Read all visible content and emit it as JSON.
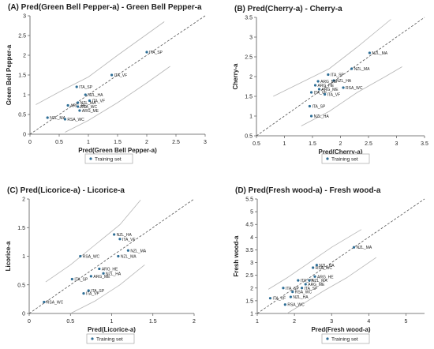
{
  "chart_data": [
    {
      "type": "scatter",
      "title": "(A)  Pred(Green Bell Pepper-a) - Green Bell Pepper-a",
      "xlabel": "Pred(Green Bell Pepper-a)",
      "ylabel": "Green Bell Pepper-a",
      "xlim": [
        0,
        3
      ],
      "ylim": [
        0,
        3
      ],
      "xticks": [
        "0",
        "0.5",
        "1",
        "1.5",
        "2",
        "2.5",
        "3"
      ],
      "yticks": [
        "0",
        "0.5",
        "1",
        "1.5",
        "2",
        "2.5",
        "3"
      ],
      "grid": false,
      "legend": [
        "Training set"
      ],
      "legend_position": "bottom-left",
      "series": [
        {
          "name": "Training set",
          "points": [
            {
              "label": "ITA_SP",
              "x": 2.0,
              "y": 2.08
            },
            {
              "label": "ITA_VF",
              "x": 1.4,
              "y": 1.5
            },
            {
              "label": "ITA_SP",
              "x": 0.8,
              "y": 1.2
            },
            {
              "label": "NZL_HA",
              "x": 0.95,
              "y": 1.0
            },
            {
              "label": "ITA_VF",
              "x": 1.02,
              "y": 0.85
            },
            {
              "label": "NZL_MA",
              "x": 0.82,
              "y": 0.8
            },
            {
              "label": "ARG_HE",
              "x": 0.65,
              "y": 0.73
            },
            {
              "label": "RSA_WC",
              "x": 0.82,
              "y": 0.7
            },
            {
              "label": "ARG_ME",
              "x": 0.85,
              "y": 0.6
            },
            {
              "label": "NZL_MA",
              "x": 0.3,
              "y": 0.42
            },
            {
              "label": "RSA_WC",
              "x": 0.6,
              "y": 0.38
            }
          ]
        }
      ],
      "fit_line": {
        "x": [
          0,
          3
        ],
        "y": [
          0,
          3
        ]
      },
      "confidence_lower": {
        "x": [
          0.6,
          1.0,
          1.5,
          2.0,
          2.4
        ],
        "y": [
          0.05,
          0.35,
          0.8,
          1.3,
          1.72
        ]
      },
      "confidence_upper": {
        "x": [
          0.1,
          0.6,
          1.0,
          1.5,
          2.3
        ],
        "y": [
          0.75,
          1.15,
          1.45,
          2.0,
          2.85
        ]
      }
    },
    {
      "type": "scatter",
      "title": "(B)  Pred(Cherry-a) - Cherry-a",
      "xlabel": "Pred(Cherry-a)",
      "ylabel": "Cherry-a",
      "xlim": [
        0.5,
        3.5
      ],
      "ylim": [
        0.5,
        3.5
      ],
      "xticks": [
        "0.5",
        "1",
        "1.5",
        "2",
        "2.5",
        "3",
        "3.5"
      ],
      "yticks": [
        "0.5",
        "1",
        "1.5",
        "2",
        "2.5",
        "3",
        "3.5"
      ],
      "grid": false,
      "legend": [
        "Training set"
      ],
      "legend_position": "bottom-left",
      "series": [
        {
          "name": "Training set",
          "points": [
            {
              "label": "NZL_MA",
              "x": 2.52,
              "y": 2.6
            },
            {
              "label": "NZL_MA",
              "x": 2.2,
              "y": 2.2
            },
            {
              "label": "ITA_SP",
              "x": 1.78,
              "y": 2.05
            },
            {
              "label": "NZL_HA",
              "x": 1.88,
              "y": 1.9
            },
            {
              "label": "ARG_ME",
              "x": 1.6,
              "y": 1.88
            },
            {
              "label": "ARG_HE",
              "x": 1.55,
              "y": 1.78
            },
            {
              "label": "ARG_ME",
              "x": 1.62,
              "y": 1.68
            },
            {
              "label": "RSA_WC",
              "x": 2.05,
              "y": 1.72
            },
            {
              "label": "ITA_VF",
              "x": 1.48,
              "y": 1.6
            },
            {
              "label": "ITA_VF",
              "x": 1.72,
              "y": 1.55
            },
            {
              "label": "ITA_SP",
              "x": 1.45,
              "y": 1.25
            },
            {
              "label": "NZL_HA",
              "x": 1.48,
              "y": 1.0
            }
          ]
        }
      ],
      "fit_line": {
        "x": [
          0.5,
          3.5
        ],
        "y": [
          0.5,
          3.5
        ]
      },
      "confidence_lower": {
        "x": [
          1.3,
          1.8,
          2.3,
          2.8,
          3.1
        ],
        "y": [
          0.75,
          1.12,
          1.6,
          2.0,
          2.25
        ]
      },
      "confidence_upper": {
        "x": [
          0.8,
          1.3,
          1.8,
          2.3,
          2.9
        ],
        "y": [
          1.5,
          1.85,
          2.2,
          2.75,
          3.45
        ]
      }
    },
    {
      "type": "scatter",
      "title": "(C)  Pred(Licorice-a) - Licorice-a",
      "xlabel": "Pred(Licorice-a)",
      "ylabel": "Licorice-a",
      "xlim": [
        0,
        2
      ],
      "ylim": [
        0,
        2
      ],
      "xticks": [
        "0",
        "0.5",
        "1",
        "1.5",
        "2"
      ],
      "yticks": [
        "0",
        "0.5",
        "1",
        "1.5",
        "2"
      ],
      "grid": false,
      "legend": [
        "Training set"
      ],
      "legend_position": "bottom-left",
      "series": [
        {
          "name": "Training set",
          "points": [
            {
              "label": "NZL_HA",
              "x": 1.03,
              "y": 1.38
            },
            {
              "label": "ITA_VF",
              "x": 1.1,
              "y": 1.3
            },
            {
              "label": "NZL_MA",
              "x": 1.2,
              "y": 1.1
            },
            {
              "label": "RSA_WC",
              "x": 0.62,
              "y": 1.0
            },
            {
              "label": "NZL_MA",
              "x": 1.08,
              "y": 1.0
            },
            {
              "label": "ARG_HE",
              "x": 0.85,
              "y": 0.78
            },
            {
              "label": "NZL_HA",
              "x": 0.9,
              "y": 0.7
            },
            {
              "label": "ARG_ME",
              "x": 0.75,
              "y": 0.65
            },
            {
              "label": "ITA_SP",
              "x": 0.52,
              "y": 0.6
            },
            {
              "label": "ITA_SP",
              "x": 0.72,
              "y": 0.4
            },
            {
              "label": "ITA_VF",
              "x": 0.66,
              "y": 0.35
            },
            {
              "label": "RSA_WC",
              "x": 0.18,
              "y": 0.2
            }
          ]
        }
      ],
      "fit_line": {
        "x": [
          0,
          2
        ],
        "y": [
          0,
          2
        ]
      },
      "confidence_lower": {
        "x": [
          0.5,
          0.8,
          1.1,
          1.4
        ],
        "y": [
          0.0,
          0.22,
          0.5,
          0.85
        ]
      },
      "confidence_upper": {
        "x": [
          0.2,
          0.5,
          0.8,
          1.1,
          1.35
        ],
        "y": [
          0.55,
          0.85,
          1.2,
          1.55,
          1.98
        ]
      }
    },
    {
      "type": "scatter",
      "title": "(D)  Pred(Fresh wood-a) - Fresh wood-a",
      "xlabel": "Pred(Fresh wood-a)",
      "ylabel": "Fresh wood-a",
      "xlim": [
        1,
        5.5
      ],
      "ylim": [
        1,
        5.5
      ],
      "xticks": [
        "1",
        "2",
        "3",
        "4",
        "5"
      ],
      "yticks": [
        "1",
        "1.5",
        "2",
        "2.5",
        "3",
        "3.5",
        "4",
        "4.5",
        "5",
        "5.5"
      ],
      "grid": false,
      "legend": [
        "Training set"
      ],
      "legend_position": "bottom-left",
      "series": [
        {
          "name": "Training set",
          "points": [
            {
              "label": "NZL_MA",
              "x": 3.6,
              "y": 3.6
            },
            {
              "label": "RSA_WC",
              "x": 2.5,
              "y": 2.8
            },
            {
              "label": "NZL_HA",
              "x": 2.6,
              "y": 2.9
            },
            {
              "label": "ARG_HE",
              "x": 2.55,
              "y": 2.45
            },
            {
              "label": "ITA_VF",
              "x": 2.1,
              "y": 2.3
            },
            {
              "label": "NZL_MA",
              "x": 2.4,
              "y": 2.3
            },
            {
              "label": "ARG_ME",
              "x": 2.3,
              "y": 2.15
            },
            {
              "label": "ITA_SP",
              "x": 1.7,
              "y": 2.0
            },
            {
              "label": "ITA_SP",
              "x": 2.2,
              "y": 2.0
            },
            {
              "label": "RSA_WC",
              "x": 1.95,
              "y": 1.85
            },
            {
              "label": "NZL_HA",
              "x": 1.9,
              "y": 1.65
            },
            {
              "label": "ITA_VF",
              "x": 1.35,
              "y": 1.6
            },
            {
              "label": "RSA_WC",
              "x": 1.75,
              "y": 1.35
            }
          ]
        }
      ],
      "fit_line": {
        "x": [
          1,
          5.5
        ],
        "y": [
          1,
          5.5
        ]
      },
      "confidence_lower": {
        "x": [
          1.8,
          2.2,
          2.8,
          3.4,
          4.2
        ],
        "y": [
          1.0,
          1.35,
          1.9,
          2.4,
          3.2
        ]
      },
      "confidence_upper": {
        "x": [
          1.3,
          1.8,
          2.4,
          3.0,
          3.8
        ],
        "y": [
          1.95,
          2.4,
          3.0,
          3.6,
          4.3
        ]
      }
    }
  ]
}
